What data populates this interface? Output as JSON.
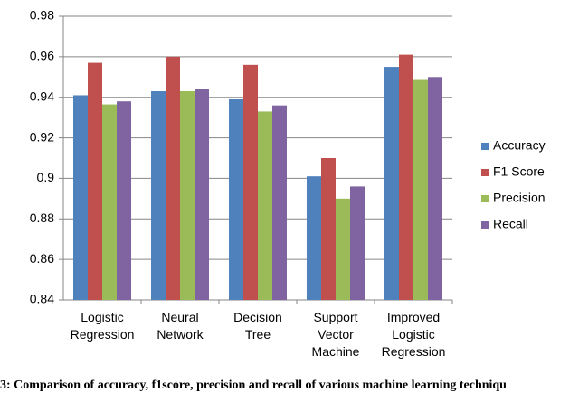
{
  "chart_data": {
    "type": "bar",
    "categories": [
      "Logistic Regression",
      "Neural Network",
      "Decision Tree",
      "Support Vector Machine",
      "Improved Logistic Regression"
    ],
    "series": [
      {
        "name": "Accuracy",
        "color": "#4f81bd",
        "values": [
          0.941,
          0.943,
          0.939,
          0.901,
          0.955
        ]
      },
      {
        "name": "F1 Score",
        "color": "#c0504d",
        "values": [
          0.957,
          0.96,
          0.956,
          0.91,
          0.961
        ]
      },
      {
        "name": "Precision",
        "color": "#9bbb59",
        "values": [
          0.9365,
          0.943,
          0.933,
          0.89,
          0.949
        ]
      },
      {
        "name": "Recall",
        "color": "#8064a2",
        "values": [
          0.938,
          0.944,
          0.936,
          0.896,
          0.95
        ]
      }
    ],
    "ylim": [
      0.84,
      0.98
    ],
    "yticks": [
      0.84,
      0.86,
      0.88,
      0.9,
      0.92,
      0.94,
      0.96,
      0.98
    ],
    "grid": true,
    "legend": "right",
    "caption": "3: Comparison of accuracy, f1score, precision and recall of various machine learning techniqu"
  }
}
